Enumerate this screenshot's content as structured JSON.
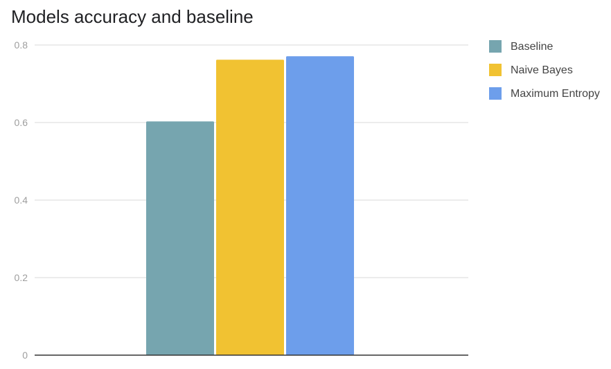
{
  "chart_data": {
    "type": "bar",
    "title": "Models accuracy and baseline",
    "xlabel": "",
    "ylabel": "",
    "ylim": [
      0,
      0.8
    ],
    "yticks": [
      0,
      0.2,
      0.4,
      0.6,
      0.8
    ],
    "ytick_labels": [
      "0",
      "0.2",
      "0.4",
      "0.6",
      "0.8"
    ],
    "grid": true,
    "legend_position": "right",
    "series": [
      {
        "name": "Baseline",
        "value": 0.603,
        "color": "#76a5af"
      },
      {
        "name": "Naive Bayes",
        "value": 0.762,
        "color": "#f1c232"
      },
      {
        "name": "Maximum Entropy",
        "value": 0.771,
        "color": "#6d9eeb"
      }
    ]
  }
}
